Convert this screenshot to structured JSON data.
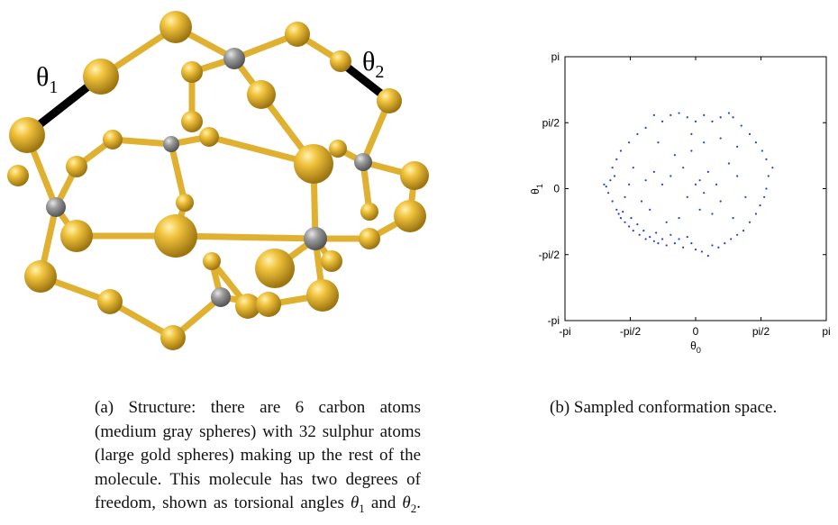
{
  "figure_a": {
    "labels": [
      {
        "symbol": "θ",
        "subscript": "1"
      },
      {
        "symbol": "θ",
        "subscript": "2"
      }
    ]
  },
  "chart_data": {
    "type": "scatter",
    "color": "#1f3fe0",
    "x_label": {
      "symbol": "θ",
      "subscript": "0"
    },
    "y_label": {
      "symbol": "θ",
      "subscript": "1"
    },
    "xlim": [
      -3.1416,
      3.1416
    ],
    "ylim": [
      -3.1416,
      3.1416
    ],
    "xticks": [
      {
        "value": -3.1416,
        "label": "-pi"
      },
      {
        "value": -1.5708,
        "label": "-pi/2"
      },
      0,
      {
        "value": 1.5708,
        "label": "pi/2"
      },
      {
        "value": 3.1416,
        "label": "pi"
      }
    ],
    "yticks": [
      {
        "value": -3.1416,
        "label": "-pi"
      },
      {
        "value": -1.5708,
        "label": "-pi/2"
      },
      0,
      {
        "value": 1.5708,
        "label": "pi/2"
      },
      {
        "value": 3.1416,
        "label": "pi"
      }
    ],
    "x": [
      -2.2,
      -2.15,
      -2.1,
      -2.05,
      -2.0,
      -1.95,
      -1.9,
      -1.85,
      -1.8,
      -1.75,
      -1.7,
      -1.6,
      -1.55,
      -1.5,
      -1.4,
      -1.35,
      -1.25,
      -1.2,
      -1.1,
      -1.0,
      -0.95,
      -0.9,
      -0.8,
      -0.7,
      -0.6,
      -0.5,
      -0.4,
      -0.3,
      -0.2,
      -0.1,
      0.0,
      0.15,
      0.3,
      0.4,
      0.55,
      0.7,
      0.85,
      1.0,
      1.15,
      1.3,
      1.45,
      1.55,
      1.65,
      1.7,
      1.75,
      1.85,
      1.7,
      1.6,
      1.45,
      1.3,
      1.1,
      0.9,
      0.8,
      0.6,
      0.4,
      0.2,
      0.0,
      -0.2,
      -0.4,
      -0.6,
      -0.8,
      -1.0,
      -1.2,
      -1.4,
      -1.6,
      -1.8,
      -1.9,
      -2.0,
      -0.5,
      -0.3,
      -0.1,
      0.1,
      0.2,
      0.3,
      0.0,
      -0.2,
      0.5,
      0.6,
      0.4,
      0.1,
      -0.6,
      -0.8,
      -1.0,
      -1.2,
      0.8,
      1.0,
      1.2,
      -0.4,
      -1.1,
      -1.3,
      0.9,
      -0.7,
      0.2,
      -0.1,
      0.6,
      1.0,
      -0.9,
      -1.5,
      -1.7,
      -1.6
    ],
    "values": [
      0.1,
      0.05,
      -0.1,
      0.2,
      -0.3,
      0.3,
      -0.5,
      -0.6,
      -0.7,
      -0.55,
      -0.8,
      -0.9,
      -0.7,
      -1.0,
      -0.85,
      -1.1,
      -1.0,
      -1.2,
      -1.15,
      -1.25,
      -1.05,
      -1.3,
      -1.2,
      -1.35,
      -1.1,
      -1.3,
      -1.2,
      -1.4,
      -1.15,
      -1.3,
      -1.45,
      -1.5,
      -1.6,
      -1.35,
      -1.4,
      -1.3,
      -1.2,
      -1.1,
      -1.0,
      -0.8,
      -0.6,
      -0.4,
      -0.2,
      0.0,
      0.3,
      0.5,
      0.7,
      0.9,
      1.1,
      1.3,
      1.5,
      1.7,
      1.8,
      1.7,
      1.6,
      1.75,
      1.6,
      1.7,
      1.8,
      1.75,
      1.6,
      1.75,
      1.45,
      1.3,
      1.1,
      0.9,
      0.7,
      0.5,
      0.8,
      0.5,
      0.9,
      0.2,
      -0.1,
      0.4,
      0.1,
      -0.2,
      0.1,
      -0.3,
      -0.6,
      -0.5,
      0.3,
      0.1,
      0.4,
      0.2,
      0.6,
      0.3,
      -0.2,
      -0.7,
      -0.5,
      -0.3,
      -0.7,
      -0.8,
      1.1,
      1.3,
      1.2,
      1.0,
      1.1,
      0.5,
      -0.2,
      0.1
    ]
  },
  "captions": {
    "a": {
      "lines": [
        "(a) Structure:  there are 6 carbon atoms",
        "(medium gray spheres) with 32 sulphur atoms",
        "(large gold spheres) making up the rest of the",
        "molecule.  This molecule has two degrees of"
      ],
      "last": {
        "before": "freedom, shown as torsional angles ",
        "theta": "θ",
        "sub_1": "1",
        "middle": " and ",
        "sub_2": "2",
        "end": "."
      }
    },
    "b": "(b) Sampled conformation space."
  }
}
